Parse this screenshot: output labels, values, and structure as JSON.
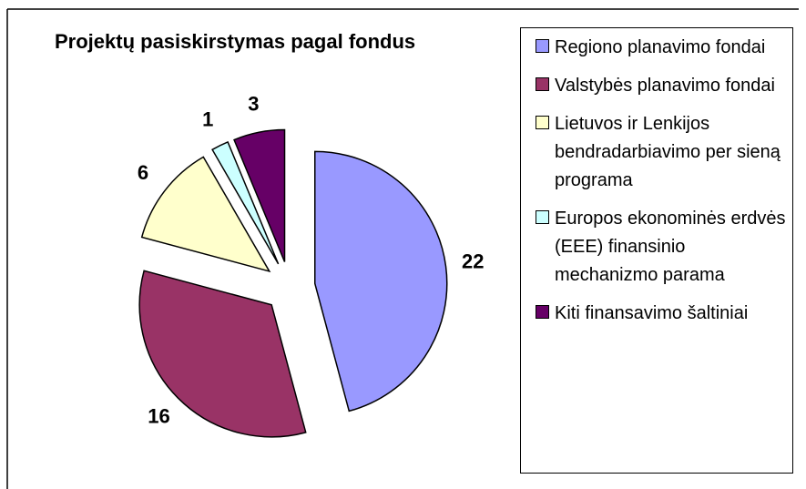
{
  "chart_data": {
    "type": "pie",
    "title": "Projektų pasiskirstymas pagal fondus",
    "categories": [
      "Regiono planavimo fondai",
      "Valstybės planavimo fondai",
      "Lietuvos ir Lenkijos bendradarbiavimo per sieną programa",
      "Europos ekonominės erdvės (EEE) finansinio mechanizmo parama",
      "Kiti finansavimo šaltiniai"
    ],
    "values": [
      22,
      16,
      6,
      1,
      3
    ],
    "colors": [
      "#9999ff",
      "#993366",
      "#ffffcc",
      "#ccffff",
      "#660066"
    ],
    "legend": "right"
  }
}
